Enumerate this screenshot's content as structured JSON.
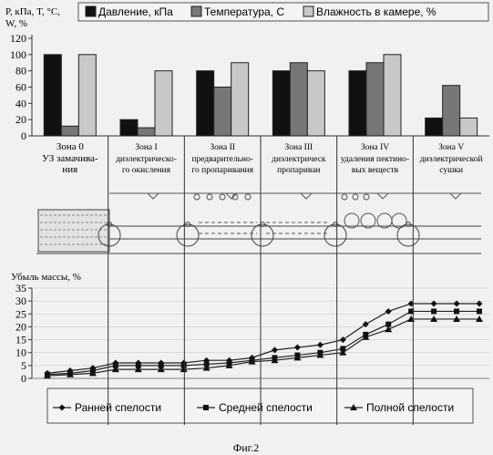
{
  "chart_data": [
    {
      "type": "bar",
      "ylabel_lines": [
        "P, кПа, T, °C,",
        "W, %"
      ],
      "ylim": [
        0,
        120
      ],
      "yticks": [
        0,
        20,
        40,
        60,
        80,
        100,
        120
      ],
      "legend": {
        "placement": "top",
        "entries": [
          "Давление, кПа",
          "Температура, С",
          "Влажность в камере, %"
        ]
      },
      "categories": [
        "Зона 0",
        "Зона I",
        "Зона II",
        "Зона III",
        "Зона IV",
        "Зона V"
      ],
      "series": [
        {
          "name": "Давление, кПа",
          "color": "#111111",
          "values": [
            100,
            20,
            80,
            80,
            80,
            22
          ]
        },
        {
          "name": "Температура, С",
          "color": "#777777",
          "values": [
            12,
            10,
            60,
            90,
            90,
            62
          ]
        },
        {
          "name": "Влажность в камере, %",
          "color": "#c8c8c8",
          "values": [
            100,
            80,
            90,
            80,
            100,
            22
          ]
        }
      ]
    },
    {
      "type": "line",
      "ylabel": "Убыль массы, %",
      "ylim": [
        0,
        35
      ],
      "yticks": [
        0,
        5,
        10,
        15,
        20,
        25,
        30,
        35
      ],
      "x": [
        1,
        2,
        3,
        4,
        5,
        6,
        7,
        8,
        9,
        10,
        11,
        12,
        13,
        14,
        15,
        16,
        17,
        18,
        19,
        20
      ],
      "legend": {
        "placement": "bottom",
        "entries": [
          "Ранней спелости",
          "Средней спелости",
          "Полной спелости"
        ]
      },
      "series": [
        {
          "name": "Ранней спелости",
          "marker": "diamond",
          "values": [
            2,
            3,
            4,
            6,
            6,
            6,
            6,
            7,
            7,
            8,
            11,
            12,
            13,
            15,
            21,
            26,
            29,
            29,
            29,
            29
          ]
        },
        {
          "name": "Средней спелости",
          "marker": "square",
          "values": [
            1.5,
            2,
            3,
            5,
            5,
            5,
            5,
            5.5,
            6,
            7,
            8,
            9,
            10,
            11.5,
            17,
            21,
            26,
            26,
            26,
            26
          ]
        },
        {
          "name": "Полной спелости",
          "marker": "triangle",
          "values": [
            1,
            1.5,
            2,
            3.5,
            3.5,
            3.5,
            3.5,
            4,
            5,
            6.5,
            7,
            8,
            9,
            10,
            16,
            19,
            23,
            23,
            23,
            23
          ]
        }
      ]
    }
  ],
  "zones": [
    {
      "title": "Зона 0",
      "desc": [
        "УЗ замачива-",
        "ния"
      ]
    },
    {
      "title": "Зона I",
      "desc": [
        "диэлектрическо-",
        "го окисления"
      ]
    },
    {
      "title": "Зона II",
      "desc": [
        "предварительно-",
        "го пропаривания"
      ]
    },
    {
      "title": "Зона III",
      "desc": [
        "диэлектрическ",
        "пропариван"
      ]
    },
    {
      "title": "Зона IV",
      "desc": [
        "удаления пектино-",
        "вых веществ"
      ]
    },
    {
      "title": "Зона V",
      "desc": [
        "диэлектрической",
        "сушки"
      ]
    }
  ],
  "caption": "Фиг.2"
}
